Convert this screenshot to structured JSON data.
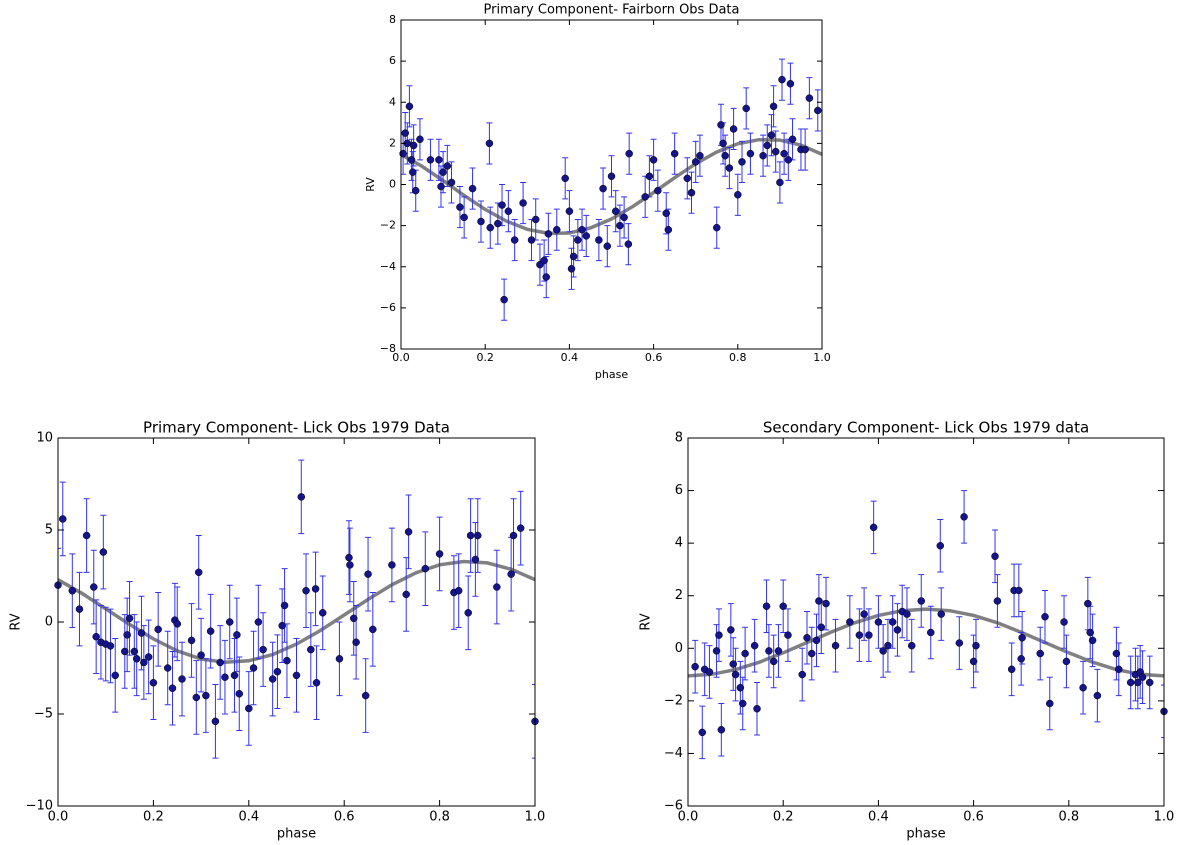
{
  "chart_data": [
    {
      "type": "scatter",
      "title": "Primary Component- Fairborn Obs Data",
      "xlabel": "phase",
      "ylabel": "RV",
      "xlim": [
        0,
        1
      ],
      "ylim": [
        -8,
        8
      ],
      "xticks": [
        {
          "value": 0,
          "label": "0.0"
        },
        0.2,
        0.4,
        0.6,
        0.8,
        {
          "value": 1,
          "label": "1.0"
        }
      ],
      "yticks": [
        {
          "value": -8,
          "label": "−8"
        },
        {
          "value": -6,
          "label": "−6"
        },
        {
          "value": -4,
          "label": "−4"
        },
        {
          "value": -2,
          "label": "−2"
        },
        0,
        2,
        4,
        6,
        8
      ],
      "points": {
        "color": "#14148c",
        "err_color": "#3333ee",
        "err": 1,
        "x": [
          0.005,
          0.01,
          0.015,
          0.02,
          0.025,
          0.028,
          0.03,
          0.035,
          0.045,
          0.07,
          0.09,
          0.095,
          0.1,
          0.11,
          0.12,
          0.14,
          0.15,
          0.17,
          0.19,
          0.21,
          0.212,
          0.23,
          0.24,
          0.245,
          0.255,
          0.27,
          0.29,
          0.31,
          0.32,
          0.33,
          0.34,
          0.345,
          0.35,
          0.37,
          0.39,
          0.4,
          0.405,
          0.41,
          0.42,
          0.43,
          0.44,
          0.47,
          0.48,
          0.49,
          0.5,
          0.51,
          0.52,
          0.53,
          0.54,
          0.542,
          0.58,
          0.59,
          0.6,
          0.61,
          0.63,
          0.635,
          0.65,
          0.68,
          0.69,
          0.7,
          0.71,
          0.75,
          0.76,
          0.765,
          0.77,
          0.78,
          0.79,
          0.8,
          0.81,
          0.82,
          0.83,
          0.86,
          0.87,
          0.88,
          0.885,
          0.89,
          0.9,
          0.905,
          0.91,
          0.92,
          0.925,
          0.93,
          0.95,
          0.96,
          0.97,
          0.99
        ],
        "y": [
          1.5,
          2.5,
          2.0,
          3.8,
          1.2,
          0.6,
          1.9,
          -0.3,
          2.2,
          1.2,
          1.2,
          -0.1,
          0.6,
          0.9,
          0.1,
          -1.1,
          -1.6,
          -0.2,
          -1.8,
          2.0,
          -2.1,
          -1.9,
          -1.0,
          -5.6,
          -1.3,
          -2.7,
          -0.9,
          -2.7,
          -1.7,
          -3.9,
          -3.7,
          -4.5,
          -2.4,
          -2.2,
          0.3,
          -1.3,
          -4.1,
          -3.5,
          -2.7,
          -2.2,
          -2.5,
          -2.7,
          -0.2,
          -3.0,
          0.4,
          -1.3,
          -2.0,
          -1.6,
          -2.9,
          1.5,
          -0.6,
          0.4,
          1.2,
          -0.3,
          -1.4,
          -2.2,
          1.5,
          0.3,
          -0.4,
          1.1,
          1.4,
          -2.1,
          2.9,
          2.0,
          1.4,
          0.8,
          2.7,
          -0.5,
          1.1,
          3.7,
          1.5,
          1.4,
          1.9,
          2.4,
          3.8,
          1.6,
          0.1,
          5.1,
          1.5,
          1.2,
          4.9,
          2.2,
          1.7,
          1.7,
          4.2,
          3.6
        ]
      },
      "fit": {
        "color": "#808080",
        "x": [
          0,
          0.05,
          0.1,
          0.15,
          0.2,
          0.25,
          0.3,
          0.35,
          0.4,
          0.45,
          0.5,
          0.55,
          0.6,
          0.65,
          0.7,
          0.75,
          0.8,
          0.85,
          0.9,
          0.95,
          1
        ],
        "y": [
          1.47,
          0.88,
          0.19,
          -0.53,
          -1.21,
          -1.78,
          -2.18,
          -2.38,
          -2.36,
          -2.11,
          -1.68,
          -1.08,
          -0.39,
          0.33,
          1.01,
          1.58,
          1.98,
          2.18,
          2.16,
          1.91,
          1.47
        ]
      }
    },
    {
      "type": "scatter",
      "title": "Primary Component- Lick Obs 1979 Data",
      "xlabel": "phase",
      "ylabel": "RV",
      "xlim": [
        0,
        1
      ],
      "ylim": [
        -10,
        10
      ],
      "xticks": [
        {
          "value": 0,
          "label": "0.0"
        },
        0.2,
        0.4,
        0.6,
        0.8,
        {
          "value": 1,
          "label": "1.0"
        }
      ],
      "yticks": [
        {
          "value": -10,
          "label": "−10"
        },
        {
          "value": -5,
          "label": "−5"
        },
        0,
        5,
        10
      ],
      "points": {
        "color": "#14148c",
        "err_color": "#3333ee",
        "err": 2,
        "x": [
          0.0,
          0.01,
          0.03,
          0.045,
          0.06,
          0.075,
          0.08,
          0.09,
          0.095,
          0.1,
          0.11,
          0.12,
          0.14,
          0.145,
          0.15,
          0.16,
          0.165,
          0.175,
          0.18,
          0.19,
          0.2,
          0.21,
          0.23,
          0.24,
          0.245,
          0.25,
          0.26,
          0.28,
          0.29,
          0.295,
          0.3,
          0.31,
          0.32,
          0.33,
          0.34,
          0.35,
          0.36,
          0.37,
          0.375,
          0.38,
          0.4,
          0.41,
          0.42,
          0.43,
          0.45,
          0.46,
          0.47,
          0.475,
          0.48,
          0.5,
          0.51,
          0.52,
          0.53,
          0.54,
          0.542,
          0.555,
          0.59,
          0.61,
          0.612,
          0.62,
          0.625,
          0.645,
          0.65,
          0.66,
          0.7,
          0.73,
          0.735,
          0.77,
          0.8,
          0.83,
          0.84,
          0.86,
          0.865,
          0.875,
          0.88,
          0.92,
          0.95,
          0.955,
          0.97,
          1.0
        ],
        "y": [
          2.0,
          5.6,
          1.7,
          0.7,
          4.7,
          1.9,
          -0.8,
          -1.1,
          3.8,
          -1.2,
          -1.3,
          -2.9,
          -1.6,
          -0.7,
          0.2,
          -1.6,
          -2.0,
          -0.6,
          -2.2,
          -1.9,
          -3.3,
          -0.4,
          -2.5,
          -3.6,
          0.1,
          -0.1,
          -3.1,
          -1.0,
          -4.1,
          2.7,
          -1.8,
          -4.0,
          -0.5,
          -5.4,
          -2.2,
          -3.0,
          0.0,
          -2.9,
          -0.7,
          -3.9,
          -4.7,
          -2.5,
          0.0,
          -1.5,
          -3.1,
          -2.7,
          -0.2,
          0.9,
          -2.1,
          -2.9,
          6.8,
          1.7,
          -1.5,
          1.8,
          -3.3,
          0.5,
          -2.0,
          3.5,
          3.1,
          0.2,
          -1.1,
          -4.0,
          2.6,
          -0.4,
          3.1,
          1.5,
          4.9,
          2.9,
          3.7,
          1.6,
          1.7,
          0.5,
          4.7,
          3.4,
          4.7,
          1.9,
          2.6,
          4.7,
          5.1,
          -5.4
        ]
      },
      "fit": {
        "color": "#808080",
        "x": [
          0,
          0.05,
          0.1,
          0.15,
          0.2,
          0.25,
          0.3,
          0.35,
          0.4,
          0.45,
          0.5,
          0.55,
          0.6,
          0.65,
          0.7,
          0.75,
          0.8,
          0.85,
          0.9,
          0.95,
          1
        ],
        "y": [
          2.3,
          1.56,
          0.72,
          -0.13,
          -0.92,
          -1.57,
          -2.01,
          -2.19,
          -2.11,
          -1.77,
          -1.2,
          -0.46,
          0.38,
          1.23,
          2.02,
          2.67,
          3.11,
          3.29,
          3.21,
          2.87,
          2.3
        ]
      }
    },
    {
      "type": "scatter",
      "title": "Secondary Component- Lick Obs 1979 data",
      "xlabel": "phase",
      "ylabel": "RV",
      "xlim": [
        0,
        1
      ],
      "ylim": [
        -6,
        8
      ],
      "xticks": [
        {
          "value": 0,
          "label": "0.0"
        },
        0.2,
        0.4,
        0.6,
        0.8,
        {
          "value": 1,
          "label": "1.0"
        }
      ],
      "yticks": [
        {
          "value": -6,
          "label": "−6"
        },
        {
          "value": -4,
          "label": "−4"
        },
        {
          "value": -2,
          "label": "−2"
        },
        0,
        2,
        4,
        6,
        8
      ],
      "points": {
        "color": "#14148c",
        "err_color": "#3333ee",
        "err": 1,
        "x": [
          0.015,
          0.03,
          0.035,
          0.045,
          0.06,
          0.065,
          0.07,
          0.09,
          0.095,
          0.1,
          0.11,
          0.115,
          0.12,
          0.14,
          0.145,
          0.165,
          0.17,
          0.18,
          0.19,
          0.2,
          0.21,
          0.24,
          0.25,
          0.26,
          0.27,
          0.275,
          0.28,
          0.29,
          0.31,
          0.34,
          0.36,
          0.37,
          0.38,
          0.39,
          0.4,
          0.41,
          0.42,
          0.43,
          0.44,
          0.45,
          0.46,
          0.47,
          0.49,
          0.51,
          0.53,
          0.532,
          0.57,
          0.58,
          0.6,
          0.605,
          0.645,
          0.65,
          0.68,
          0.685,
          0.695,
          0.7,
          0.702,
          0.74,
          0.75,
          0.76,
          0.79,
          0.795,
          0.83,
          0.84,
          0.845,
          0.85,
          0.86,
          0.9,
          0.905,
          0.93,
          0.94,
          0.945,
          0.95,
          0.955,
          0.97,
          1.0
        ],
        "y": [
          -0.7,
          -3.2,
          -0.8,
          -0.9,
          -0.1,
          0.5,
          -3.1,
          0.7,
          -0.6,
          -1.0,
          -1.5,
          -2.1,
          -0.2,
          0.1,
          -2.3,
          1.6,
          -0.1,
          -0.5,
          -0.1,
          1.6,
          0.5,
          -1.0,
          0.4,
          -0.2,
          0.3,
          1.8,
          0.8,
          1.7,
          0.1,
          1.0,
          0.5,
          1.3,
          0.5,
          4.6,
          1.0,
          -0.1,
          0.1,
          1.0,
          0.7,
          1.4,
          1.3,
          0.1,
          1.8,
          0.6,
          3.9,
          1.3,
          0.2,
          5.0,
          -0.5,
          0.1,
          3.5,
          1.8,
          -0.8,
          2.2,
          2.2,
          -0.4,
          0.4,
          -0.2,
          1.2,
          -2.1,
          1.0,
          -0.5,
          -1.5,
          1.7,
          0.6,
          0.3,
          -1.8,
          -0.2,
          -0.8,
          -1.3,
          -1.0,
          -1.3,
          -0.9,
          -1.1,
          -1.3,
          -2.4
        ]
      },
      "fit": {
        "color": "#808080",
        "x": [
          0,
          0.05,
          0.1,
          0.15,
          0.2,
          0.25,
          0.3,
          0.35,
          0.4,
          0.45,
          0.5,
          0.55,
          0.6,
          0.65,
          0.7,
          0.75,
          0.8,
          0.85,
          0.9,
          0.95,
          1
        ],
        "y": [
          -1.05,
          -0.99,
          -0.81,
          -0.53,
          -0.17,
          0.22,
          0.61,
          0.97,
          1.25,
          1.43,
          1.49,
          1.43,
          1.25,
          0.97,
          0.61,
          0.22,
          -0.17,
          -0.53,
          -0.81,
          -0.99,
          -1.05
        ]
      }
    }
  ]
}
